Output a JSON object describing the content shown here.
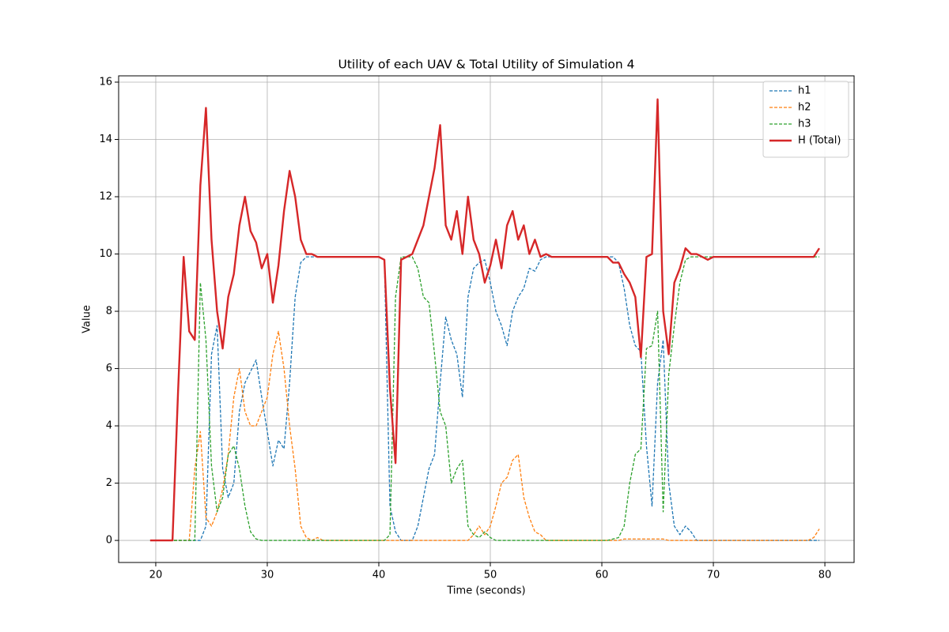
{
  "chart_data": {
    "type": "line",
    "title": "Utility of each UAV & Total Utility of Simulation 4",
    "x_label": "Time (seconds)",
    "y_label": "Value",
    "xlim": [
      16.67,
      82.62
    ],
    "ylim": [
      -0.77,
      16.22
    ],
    "xticks": [
      20,
      30,
      40,
      50,
      60,
      70,
      80
    ],
    "yticks": [
      0,
      2,
      4,
      6,
      8,
      10,
      12,
      14,
      16
    ],
    "grid": true,
    "legend": "upper right",
    "x": [
      19.5,
      20,
      20.5,
      21,
      21.5,
      22,
      22.5,
      23,
      23.5,
      24,
      24.5,
      25,
      25.5,
      26,
      26.5,
      27,
      27.5,
      28,
      28.5,
      29,
      29.5,
      30,
      30.5,
      31,
      31.5,
      32,
      32.5,
      33,
      33.5,
      34,
      34.5,
      35,
      35.5,
      36,
      36.5,
      37,
      37.5,
      38,
      38.5,
      39,
      39.5,
      40,
      40.5,
      41,
      41.5,
      42,
      42.5,
      43,
      43.5,
      44,
      44.5,
      45,
      45.5,
      46,
      46.5,
      47,
      47.5,
      48,
      48.5,
      49,
      49.5,
      50,
      50.5,
      51,
      51.5,
      52,
      52.5,
      53,
      53.5,
      54,
      54.5,
      55,
      55.5,
      56,
      56.5,
      57,
      57.5,
      58,
      58.5,
      59,
      59.5,
      60,
      60.5,
      61,
      61.5,
      62,
      62.5,
      63,
      63.5,
      64,
      64.5,
      65,
      65.5,
      66,
      66.5,
      67,
      67.5,
      68,
      68.5,
      69,
      69.5,
      70,
      70.5,
      71,
      71.5,
      72,
      72.5,
      73,
      73.5,
      74,
      74.5,
      75,
      75.5,
      76,
      76.5,
      77,
      77.5,
      78,
      78.5,
      79,
      79.5
    ],
    "series": [
      {
        "name": "h1",
        "color": "#1f77b4",
        "linestyle": "dashed",
        "values": [
          0,
          0,
          0,
          0,
          0,
          0,
          0,
          0,
          0,
          0,
          0.5,
          6.5,
          7.5,
          2.5,
          1.5,
          2.0,
          4.5,
          5.5,
          5.9,
          6.3,
          5.0,
          3.8,
          2.6,
          3.5,
          3.2,
          5.5,
          8.5,
          9.7,
          9.9,
          9.9,
          9.9,
          9.9,
          9.9,
          9.9,
          9.9,
          9.9,
          9.9,
          9.9,
          9.9,
          9.9,
          9.9,
          9.9,
          9.8,
          1.2,
          0.3,
          0,
          0,
          0,
          0.5,
          1.5,
          2.5,
          3.0,
          5.5,
          7.8,
          7.0,
          6.5,
          5.0,
          8.5,
          9.5,
          9.7,
          9.8,
          9.0,
          8.0,
          7.5,
          6.8,
          8.0,
          8.5,
          8.8,
          9.5,
          9.4,
          9.8,
          9.9,
          9.9,
          9.9,
          9.9,
          9.9,
          9.9,
          9.9,
          9.9,
          9.9,
          9.9,
          9.9,
          9.9,
          9.9,
          9.7,
          8.8,
          7.5,
          6.8,
          6.6,
          3.3,
          1.2,
          5.5,
          7.0,
          2.0,
          0.5,
          0.2,
          0.5,
          0.3,
          0,
          0,
          0,
          0,
          0,
          0,
          0,
          0,
          0,
          0,
          0,
          0,
          0,
          0,
          0,
          0,
          0,
          0,
          0,
          0,
          0,
          0,
          0
        ]
      },
      {
        "name": "h2",
        "color": "#ff7f0e",
        "linestyle": "dashed",
        "values": [
          0,
          0,
          0,
          0,
          0,
          0,
          0,
          0,
          2.5,
          3.8,
          0.8,
          0.5,
          1.0,
          1.8,
          3.0,
          5.0,
          6.0,
          4.5,
          4.0,
          4.0,
          4.5,
          5.0,
          6.5,
          7.3,
          6.0,
          4.0,
          2.5,
          0.5,
          0.1,
          0,
          0.1,
          0,
          0,
          0,
          0,
          0,
          0,
          0,
          0,
          0,
          0,
          0,
          0,
          0,
          0,
          0,
          0,
          0,
          0,
          0,
          0,
          0,
          0,
          0,
          0,
          0,
          0,
          0,
          0.2,
          0.5,
          0.2,
          0.5,
          1.2,
          2.0,
          2.2,
          2.8,
          3.0,
          1.5,
          0.8,
          0.3,
          0.2,
          0,
          0,
          0,
          0,
          0,
          0,
          0,
          0,
          0,
          0,
          0,
          0,
          0,
          0,
          0.05,
          0.05,
          0.05,
          0.05,
          0.05,
          0.05,
          0.05,
          0.05,
          0,
          0,
          0,
          0,
          0,
          0,
          0,
          0,
          0,
          0,
          0,
          0,
          0,
          0,
          0,
          0,
          0,
          0,
          0,
          0,
          0,
          0,
          0,
          0,
          0,
          0,
          0.1,
          0.4
        ]
      },
      {
        "name": "h3",
        "color": "#2ca02c",
        "linestyle": "dashed",
        "values": [
          0,
          0,
          0,
          0,
          0,
          0,
          0,
          0,
          0,
          9.0,
          7.0,
          2.6,
          1.0,
          1.5,
          3.0,
          3.3,
          2.5,
          1.2,
          0.3,
          0.05,
          0,
          0,
          0,
          0,
          0,
          0,
          0,
          0,
          0,
          0,
          0,
          0,
          0,
          0,
          0,
          0,
          0,
          0,
          0,
          0,
          0,
          0,
          0,
          0.2,
          8.5,
          9.9,
          9.9,
          9.9,
          9.5,
          8.5,
          8.3,
          6.5,
          4.5,
          4.0,
          2.0,
          2.5,
          2.8,
          0.5,
          0.2,
          0.1,
          0.3,
          0.1,
          0,
          0,
          0,
          0,
          0,
          0,
          0,
          0,
          0,
          0,
          0,
          0,
          0,
          0,
          0,
          0,
          0,
          0,
          0,
          0,
          0,
          0.05,
          0.1,
          0.5,
          2.0,
          3.0,
          3.2,
          6.7,
          6.8,
          8.0,
          1.0,
          5.8,
          7.5,
          9.0,
          9.8,
          9.9,
          9.9,
          9.9,
          9.9,
          9.9,
          9.9,
          9.9,
          9.9,
          9.9,
          9.9,
          9.9,
          9.9,
          9.9,
          9.9,
          9.9,
          9.9,
          9.9,
          9.9,
          9.9,
          9.9,
          9.9,
          9.9,
          9.9,
          9.9
        ]
      },
      {
        "name": "H (Total)",
        "color": "#d62728",
        "linestyle": "solid",
        "values": [
          0,
          0,
          0,
          0,
          0,
          5.2,
          9.9,
          7.3,
          7.0,
          12.4,
          15.1,
          10.5,
          8.0,
          6.7,
          8.5,
          9.3,
          11.0,
          12.0,
          10.8,
          10.4,
          9.5,
          10.0,
          8.3,
          9.6,
          11.5,
          12.9,
          12.0,
          10.5,
          10.0,
          10.0,
          9.9,
          9.9,
          9.9,
          9.9,
          9.9,
          9.9,
          9.9,
          9.9,
          9.9,
          9.9,
          9.9,
          9.9,
          9.8,
          5.3,
          2.7,
          9.8,
          9.9,
          10.0,
          10.5,
          11.0,
          12.0,
          13.0,
          14.5,
          11.0,
          10.5,
          11.5,
          10.0,
          12.0,
          10.5,
          10.0,
          9.0,
          9.6,
          10.5,
          9.5,
          11.0,
          11.5,
          10.5,
          11.0,
          10.0,
          10.5,
          9.9,
          10.0,
          9.9,
          9.9,
          9.9,
          9.9,
          9.9,
          9.9,
          9.9,
          9.9,
          9.9,
          9.9,
          9.9,
          9.7,
          9.7,
          9.3,
          9.0,
          8.5,
          6.4,
          9.9,
          10.0,
          15.4,
          8.0,
          6.5,
          9.0,
          9.5,
          10.2,
          10.0,
          10.0,
          9.9,
          9.8,
          9.9,
          9.9,
          9.9,
          9.9,
          9.9,
          9.9,
          9.9,
          9.9,
          9.9,
          9.9,
          9.9,
          9.9,
          9.9,
          9.9,
          9.9,
          9.9,
          9.9,
          9.9,
          9.9,
          10.2
        ]
      }
    ]
  }
}
